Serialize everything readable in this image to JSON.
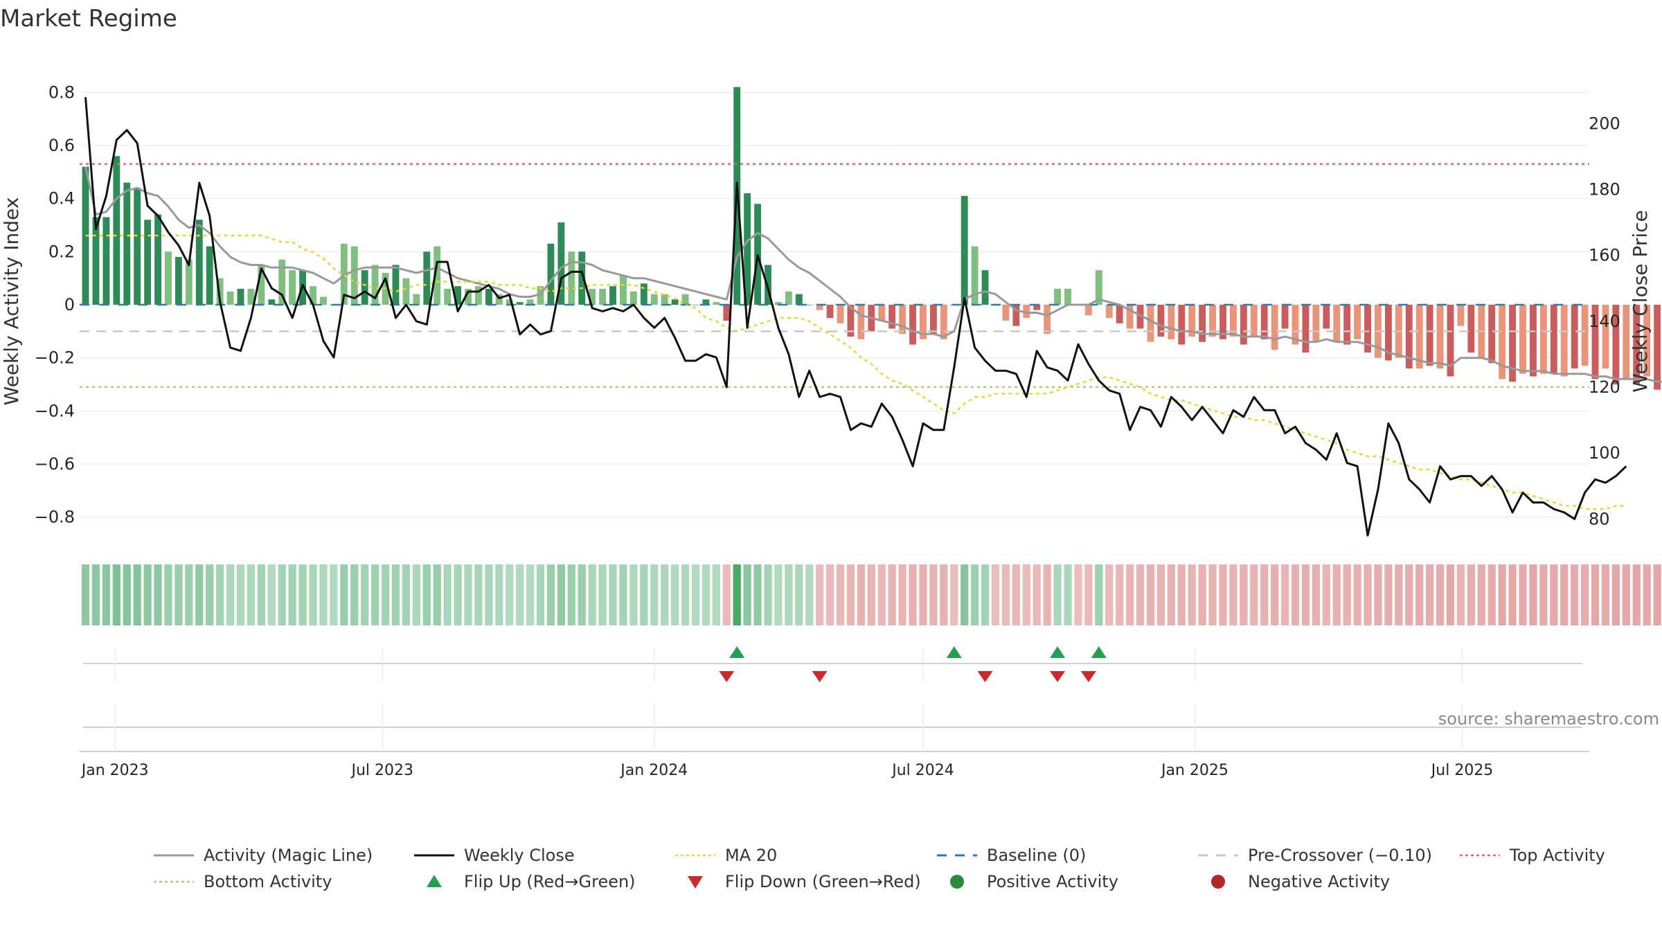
{
  "title": "Market Regime",
  "source": "source: sharemaestro.com",
  "colors": {
    "activity_line": "#999999",
    "weekly_close": "#111111",
    "ma20": "#e8d63a",
    "baseline": "#2e7bb0",
    "pre_crossover": "#c8c8c8",
    "top_activity": "#e06080",
    "bottom_activity": "#a8d070",
    "flip_up": "#22a050",
    "flip_down": "#cc2a2a",
    "positive": "#2a8a3a",
    "negative": "#b02828",
    "bar_pos_dark": "#2e8b57",
    "bar_pos_light": "#7fbf7f",
    "bar_neg_dark": "#c95c5c",
    "bar_neg_light": "#e8957a"
  },
  "chart_data": {
    "type": "bar",
    "ylabel": "Weekly Activity Index",
    "y2label": "Weekly Close Price",
    "ylim": [
      -0.9,
      0.9
    ],
    "y2lim": [
      72.5,
      217.5
    ],
    "yticks": [
      "0.8",
      "0.6",
      "0.4",
      "0.2",
      "0",
      "−0.2",
      "−0.4",
      "−0.6",
      "−0.8"
    ],
    "ytick_values": [
      0.8,
      0.6,
      0.4,
      0.2,
      0,
      -0.2,
      -0.4,
      -0.6,
      -0.8
    ],
    "y2ticks": [
      "200",
      "180",
      "160",
      "140",
      "120",
      "100",
      "80"
    ],
    "y2tick_values": [
      200,
      180,
      160,
      140,
      120,
      100,
      80
    ],
    "x_start": "2022-12-12",
    "x_end": "2025-09-22",
    "x_domain": [
      "2022-12-08",
      "2025-09-25"
    ],
    "xticks": [
      {
        "label": "Jan 2023",
        "date": "2023-01-01"
      },
      {
        "label": "Jul 2023",
        "date": "2023-07-01"
      },
      {
        "label": "Jan 2024",
        "date": "2024-01-01"
      },
      {
        "label": "Jul 2024",
        "date": "2024-07-01"
      },
      {
        "label": "Jan 2025",
        "date": "2025-01-01"
      },
      {
        "label": "Jul 2025",
        "date": "2025-07-01"
      }
    ],
    "reference_lines": {
      "top_activity": 0.53,
      "bottom_activity": -0.31,
      "pre_crossover": -0.1,
      "baseline": 0
    },
    "activity": [
      0.52,
      0.33,
      0.33,
      0.56,
      0.46,
      0.44,
      0.32,
      0.34,
      0.2,
      0.18,
      0.17,
      0.32,
      0.22,
      0.1,
      0.05,
      0.06,
      0.06,
      0.15,
      0.02,
      0.17,
      0.13,
      0.13,
      0.07,
      0.03,
      0.0,
      0.23,
      0.22,
      0.13,
      0.15,
      0.12,
      0.15,
      0.1,
      0.04,
      0.2,
      0.22,
      0.06,
      0.07,
      0.06,
      0.07,
      0.06,
      0.04,
      0.02,
      0.01,
      0.02,
      0.07,
      0.23,
      0.31,
      0.2,
      0.2,
      0.06,
      0.06,
      0.07,
      0.11,
      0.05,
      0.08,
      0.04,
      0.04,
      0.02,
      0.04,
      0.0,
      0.02,
      0.01,
      -0.06,
      0.82,
      0.42,
      0.38,
      0.15,
      0.01,
      0.05,
      0.04,
      0.0,
      -0.02,
      -0.05,
      -0.07,
      -0.12,
      -0.13,
      -0.1,
      -0.06,
      -0.09,
      -0.11,
      -0.15,
      -0.13,
      -0.11,
      -0.13,
      0.0,
      0.41,
      0.22,
      0.13,
      0.0,
      -0.06,
      -0.08,
      -0.05,
      -0.02,
      -0.11,
      0.06,
      0.06,
      0.0,
      -0.04,
      0.13,
      -0.05,
      -0.07,
      -0.09,
      -0.09,
      -0.14,
      -0.12,
      -0.13,
      -0.15,
      -0.12,
      -0.14,
      -0.12,
      -0.13,
      -0.12,
      -0.15,
      -0.12,
      -0.13,
      -0.17,
      -0.09,
      -0.15,
      -0.18,
      -0.14,
      -0.09,
      -0.14,
      -0.15,
      -0.13,
      -0.18,
      -0.2,
      -0.21,
      -0.2,
      -0.24,
      -0.24,
      -0.23,
      -0.24,
      -0.27,
      -0.08,
      -0.18,
      -0.2,
      -0.22,
      -0.28,
      -0.29,
      -0.26,
      -0.27,
      -0.26,
      -0.26,
      -0.27,
      -0.24,
      -0.23,
      -0.28,
      -0.24,
      -0.3,
      -0.28,
      -0.3,
      -0.27,
      -0.32,
      -0.27,
      -0.2,
      -0.26,
      -0.25,
      -0.2,
      -0.23
    ],
    "activity_line": [
      0.52,
      0.34,
      0.35,
      0.4,
      0.43,
      0.44,
      0.42,
      0.41,
      0.37,
      0.32,
      0.29,
      0.3,
      0.27,
      0.22,
      0.18,
      0.16,
      0.15,
      0.15,
      0.14,
      0.14,
      0.14,
      0.13,
      0.12,
      0.1,
      0.08,
      0.11,
      0.13,
      0.14,
      0.14,
      0.14,
      0.14,
      0.13,
      0.12,
      0.13,
      0.14,
      0.12,
      0.1,
      0.09,
      0.08,
      0.07,
      0.06,
      0.04,
      0.03,
      0.03,
      0.04,
      0.09,
      0.14,
      0.16,
      0.16,
      0.15,
      0.13,
      0.12,
      0.11,
      0.1,
      0.1,
      0.09,
      0.08,
      0.07,
      0.06,
      0.05,
      0.04,
      0.03,
      0.02,
      0.18,
      0.24,
      0.27,
      0.25,
      0.21,
      0.17,
      0.14,
      0.12,
      0.09,
      0.06,
      0.03,
      -0.01,
      -0.04,
      -0.05,
      -0.06,
      -0.07,
      -0.08,
      -0.1,
      -0.11,
      -0.11,
      -0.12,
      -0.1,
      0.02,
      0.04,
      0.05,
      0.04,
      0.01,
      -0.02,
      -0.03,
      -0.03,
      -0.04,
      -0.02,
      -0.0,
      -0.0,
      0.0,
      0.02,
      0.01,
      0.0,
      -0.02,
      -0.04,
      -0.06,
      -0.08,
      -0.09,
      -0.1,
      -0.1,
      -0.11,
      -0.11,
      -0.11,
      -0.11,
      -0.12,
      -0.12,
      -0.12,
      -0.13,
      -0.12,
      -0.13,
      -0.14,
      -0.14,
      -0.13,
      -0.14,
      -0.14,
      -0.14,
      -0.15,
      -0.16,
      -0.18,
      -0.19,
      -0.2,
      -0.21,
      -0.22,
      -0.22,
      -0.23,
      -0.2,
      -0.2,
      -0.2,
      -0.21,
      -0.23,
      -0.24,
      -0.25,
      -0.25,
      -0.25,
      -0.26,
      -0.26,
      -0.26,
      -0.26,
      -0.27,
      -0.27,
      -0.28,
      -0.28,
      -0.28,
      -0.28,
      -0.29,
      -0.29,
      -0.27,
      -0.27,
      -0.27,
      -0.26,
      -0.26
    ],
    "weekly_close": [
      208,
      168,
      178,
      195,
      198,
      194,
      175,
      172,
      167,
      163,
      157,
      182,
      172,
      146,
      132,
      131,
      141,
      156,
      150,
      148,
      141,
      151,
      145,
      134,
      129,
      148,
      147,
      149,
      147,
      153,
      141,
      145,
      140,
      139,
      158,
      158,
      143,
      149,
      149,
      151,
      147,
      148,
      136,
      139,
      136,
      137,
      153,
      155,
      155,
      144,
      143,
      144,
      143,
      145,
      141,
      138,
      141,
      135,
      128,
      128,
      130,
      129,
      120,
      182,
      138,
      160,
      150,
      138,
      130,
      117,
      125,
      117,
      118,
      117,
      107,
      109,
      108,
      115,
      111,
      104,
      96,
      109,
      107,
      107,
      126,
      147,
      132,
      128,
      125,
      125,
      124,
      117,
      131,
      126,
      125,
      122,
      133,
      127,
      122,
      119,
      118,
      107,
      114,
      113,
      108,
      117,
      114,
      110,
      114,
      110,
      106,
      113,
      111,
      117,
      113,
      113,
      106,
      108,
      103,
      101,
      98,
      106,
      97,
      96,
      75,
      89,
      109,
      103,
      92,
      89,
      85,
      96,
      92,
      93,
      93,
      90,
      93,
      89,
      82,
      88,
      85,
      85,
      83,
      82,
      80,
      88,
      92,
      91,
      93,
      96
    ],
    "ma20": [
      166,
      166,
      166,
      166,
      166,
      166,
      166,
      166,
      166,
      166,
      166,
      166,
      166,
      166,
      166,
      166,
      166,
      166,
      165,
      164,
      164,
      162,
      161,
      159,
      156,
      154,
      152,
      151,
      150,
      150,
      149,
      150,
      151,
      151,
      152,
      152,
      152,
      152,
      152,
      152,
      151,
      151,
      151,
      150,
      150,
      149,
      150,
      150,
      150,
      151,
      151,
      151,
      151,
      151,
      150,
      149,
      148,
      147,
      145,
      144,
      141,
      140,
      138,
      137,
      138,
      139,
      140,
      141,
      141,
      141,
      140,
      138,
      136,
      134,
      132,
      129,
      127,
      124,
      122,
      121,
      119,
      117,
      115,
      113,
      112,
      115,
      117,
      117,
      118,
      118,
      118,
      118,
      118,
      118,
      119,
      120,
      121,
      122,
      123,
      123,
      122,
      121,
      120,
      118,
      117,
      116,
      116,
      115,
      114,
      113,
      112,
      111,
      111,
      110,
      110,
      109,
      108,
      107,
      106,
      105,
      104,
      103,
      101,
      100,
      99,
      99,
      98,
      97,
      96,
      95,
      95,
      94,
      93,
      92,
      92,
      91,
      90,
      89,
      88,
      88,
      87,
      86,
      85,
      84,
      84,
      83,
      83,
      83,
      84,
      84
    ],
    "regime_strip": [
      0.58,
      0.6,
      0.6,
      0.7,
      0.65,
      0.64,
      0.58,
      0.59,
      0.5,
      0.48,
      0.47,
      0.56,
      0.5,
      0.4,
      0.35,
      0.35,
      0.35,
      0.42,
      0.32,
      0.42,
      0.4,
      0.4,
      0.36,
      0.33,
      0.3,
      0.5,
      0.5,
      0.42,
      0.44,
      0.42,
      0.44,
      0.4,
      0.34,
      0.48,
      0.5,
      0.36,
      0.37,
      0.36,
      0.37,
      0.36,
      0.34,
      0.32,
      0.31,
      0.32,
      0.37,
      0.5,
      0.56,
      0.48,
      0.48,
      0.36,
      0.36,
      0.37,
      0.4,
      0.35,
      0.38,
      0.34,
      0.34,
      0.32,
      0.34,
      0.3,
      0.32,
      0.31,
      -0.35,
      0.95,
      0.6,
      0.56,
      0.4,
      0.31,
      0.35,
      0.34,
      0.3,
      -0.32,
      -0.35,
      -0.36,
      -0.4,
      -0.41,
      -0.38,
      -0.36,
      -0.38,
      -0.4,
      -0.42,
      -0.41,
      -0.4,
      -0.41,
      -0.3,
      0.65,
      0.45,
      0.4,
      -0.3,
      -0.35,
      -0.37,
      -0.35,
      -0.32,
      -0.4,
      0.36,
      0.36,
      -0.3,
      -0.34,
      0.45,
      -0.35,
      -0.37,
      -0.38,
      -0.38,
      -0.42,
      -0.4,
      -0.41,
      -0.42,
      -0.4,
      -0.41,
      -0.4,
      -0.41,
      -0.4,
      -0.42,
      -0.4,
      -0.41,
      -0.44,
      -0.38,
      -0.42,
      -0.44,
      -0.42,
      -0.38,
      -0.42,
      -0.42,
      -0.41,
      -0.44,
      -0.46,
      -0.46,
      -0.46,
      -0.48,
      -0.48,
      -0.47,
      -0.48,
      -0.5,
      -0.38,
      -0.44,
      -0.46,
      -0.47,
      -0.5,
      -0.5,
      -0.49,
      -0.5,
      -0.49,
      -0.49,
      -0.5,
      -0.48,
      -0.47,
      -0.5,
      -0.48,
      -0.52,
      -0.5,
      -0.52,
      -0.5,
      -0.53,
      -0.5,
      -0.46,
      -0.49,
      -0.48,
      -0.46,
      -0.47
    ],
    "flip_up_weeks": [
      63,
      84,
      94,
      98
    ],
    "flip_down_weeks": [
      62,
      71,
      87,
      94,
      97
    ],
    "legend": [
      {
        "label": "Activity (Magic Line)",
        "symbol": "line",
        "color_key": "activity_line"
      },
      {
        "label": "Weekly Close",
        "symbol": "line",
        "color_key": "weekly_close"
      },
      {
        "label": "MA 20",
        "symbol": "dotted",
        "color_key": "ma20"
      },
      {
        "label": "Baseline (0)",
        "symbol": "dashed",
        "color_key": "baseline"
      },
      {
        "label": "Pre-Crossover (−0.10)",
        "symbol": "dashed",
        "color_key": "pre_crossover"
      },
      {
        "label": "Top Activity",
        "symbol": "dotted",
        "color_key": "top_activity"
      },
      {
        "label": "Bottom Activity",
        "symbol": "dotted",
        "color_key": "bottom_activity"
      },
      {
        "label": "Flip Up (Red→Green)",
        "symbol": "triangle-up",
        "color_key": "flip_up"
      },
      {
        "label": "Flip Down (Green→Red)",
        "symbol": "triangle-down",
        "color_key": "flip_down"
      },
      {
        "label": "Positive Activity",
        "symbol": "circle",
        "color_key": "positive"
      },
      {
        "label": "Negative Activity",
        "symbol": "circle",
        "color_key": "negative"
      }
    ]
  }
}
